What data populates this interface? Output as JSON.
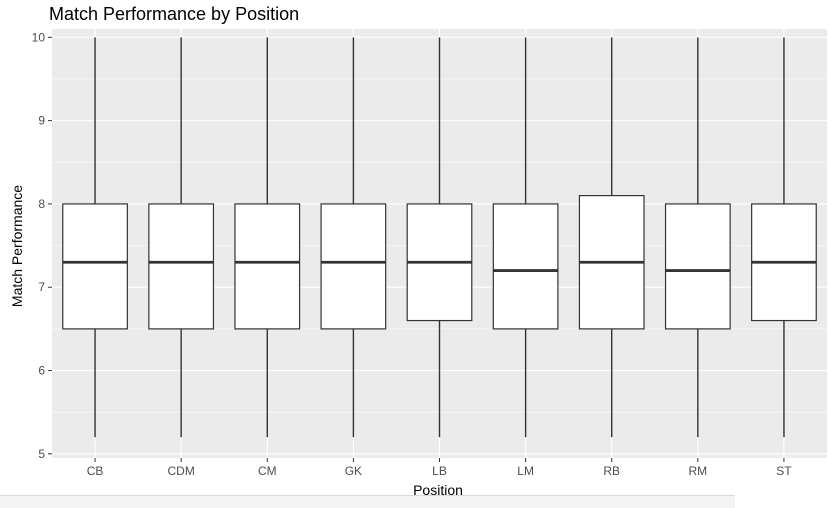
{
  "chart_data": {
    "type": "box",
    "title": "Match Performance by Position",
    "xlabel": "Position",
    "ylabel": "Match Performance",
    "ylim": [
      4.95,
      10.1
    ],
    "yticks": [
      5,
      6,
      7,
      8,
      9,
      10
    ],
    "grid": true,
    "categories": [
      "CB",
      "CDM",
      "CM",
      "GK",
      "LB",
      "LM",
      "RB",
      "RM",
      "ST"
    ],
    "boxes": [
      {
        "min": 5.2,
        "q1": 6.5,
        "median": 7.3,
        "q3": 8.0,
        "max": 10
      },
      {
        "min": 5.2,
        "q1": 6.5,
        "median": 7.3,
        "q3": 8.0,
        "max": 10
      },
      {
        "min": 5.2,
        "q1": 6.5,
        "median": 7.3,
        "q3": 8.0,
        "max": 10
      },
      {
        "min": 5.2,
        "q1": 6.5,
        "median": 7.3,
        "q3": 8.0,
        "max": 10
      },
      {
        "min": 5.2,
        "q1": 6.6,
        "median": 7.3,
        "q3": 8.0,
        "max": 10
      },
      {
        "min": 5.2,
        "q1": 6.5,
        "median": 7.2,
        "q3": 8.0,
        "max": 10
      },
      {
        "min": 5.2,
        "q1": 6.5,
        "median": 7.3,
        "q3": 8.1,
        "max": 10
      },
      {
        "min": 5.2,
        "q1": 6.5,
        "median": 7.2,
        "q3": 8.0,
        "max": 10
      },
      {
        "min": 5.2,
        "q1": 6.6,
        "median": 7.3,
        "q3": 8.0,
        "max": 10
      }
    ],
    "colors": {
      "panel": "#ebebeb",
      "grid": "#ffffff",
      "box_fill": "#ffffff",
      "box_stroke": "#333333"
    }
  }
}
